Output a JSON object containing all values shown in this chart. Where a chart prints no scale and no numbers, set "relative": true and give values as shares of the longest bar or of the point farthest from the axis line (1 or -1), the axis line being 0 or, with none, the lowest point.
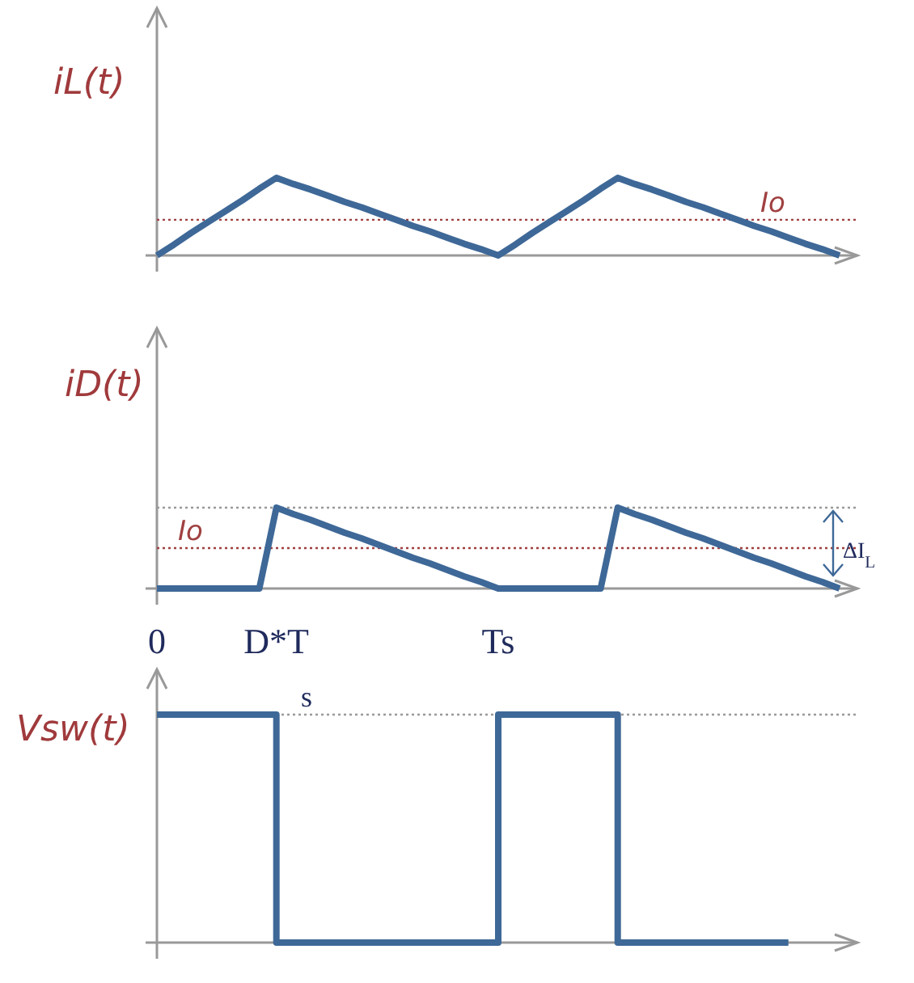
{
  "chart_data": [
    {
      "type": "line",
      "ylabel": "iL(t)",
      "relative": true,
      "tick_labels": false,
      "categories": [
        null,
        null,
        null,
        null,
        null,
        null,
        null,
        null,
        null,
        null,
        null,
        null,
        null,
        null,
        null,
        null,
        null,
        null,
        null,
        null,
        null,
        null,
        null,
        null,
        null,
        null,
        null,
        null,
        null,
        null,
        null,
        null,
        null,
        null,
        null,
        null,
        null,
        null,
        null,
        null,
        null
      ],
      "series": [
        {
          "color": "#3e6897",
          "values": [
            0,
            0.14,
            0.29,
            0.43,
            0.57,
            0.71,
            0.86,
            1,
            0.92,
            0.85,
            0.77,
            0.69,
            0.62,
            0.54,
            0.46,
            0.38,
            0.31,
            0.23,
            0.15,
            0.08,
            0,
            0.14,
            0.29,
            0.43,
            0.57,
            0.71,
            0.86,
            1,
            0.92,
            0.85,
            0.77,
            0.69,
            0.62,
            0.54,
            0.46,
            0.38,
            0.31,
            0.23,
            0.15,
            0.08,
            0
          ]
        }
      ],
      "ref_lines": [
        {
          "axis": "y",
          "value": 0.46,
          "label": "Io",
          "color": "#a04040",
          "line_style": "dotted"
        }
      ]
    },
    {
      "type": "line",
      "ylabel": "iD(t)",
      "relative": true,
      "tick_labels": "x",
      "categories": [
        "0",
        null,
        null,
        null,
        null,
        null,
        null,
        "D*T",
        null,
        null,
        null,
        null,
        null,
        null,
        null,
        null,
        null,
        null,
        null,
        null,
        "Ts",
        null,
        null,
        null,
        null,
        null,
        null,
        null,
        null,
        null,
        null,
        null,
        null,
        null,
        null,
        null,
        null,
        null,
        null,
        null,
        null
      ],
      "series": [
        {
          "color": "#3e6897",
          "values": [
            0,
            0,
            0,
            0,
            0,
            0,
            0,
            1,
            0.92,
            0.85,
            0.77,
            0.69,
            0.62,
            0.54,
            0.46,
            0.38,
            0.31,
            0.23,
            0.15,
            0.08,
            0,
            0,
            0,
            0,
            0,
            0,
            0,
            1,
            0.92,
            0.85,
            0.77,
            0.69,
            0.62,
            0.54,
            0.46,
            0.38,
            0.31,
            0.23,
            0.15,
            0.08,
            0
          ]
        }
      ],
      "ref_lines": [
        {
          "axis": "y",
          "value": 0.5,
          "label": "Io",
          "color": "#a04040",
          "line_style": "dotted"
        },
        {
          "axis": "y",
          "value": 1,
          "color": "#999999",
          "line_style": "dotted"
        }
      ],
      "annotations": [
        "ΔI$_{L}$"
      ]
    },
    {
      "type": "step",
      "ylabel": "Vsw(t)",
      "relative": true,
      "tick_labels": false,
      "categories": [
        null,
        null,
        null,
        null,
        null,
        null,
        null,
        null,
        null,
        null,
        null,
        null,
        null,
        null,
        null,
        null,
        null,
        null,
        null,
        null,
        null,
        null,
        null,
        null,
        null,
        null,
        null,
        null,
        null,
        null,
        null,
        null,
        null,
        null,
        null,
        null,
        null,
        null,
        null,
        null,
        null
      ],
      "series": [
        {
          "color": "#3e6897",
          "values": [
            1,
            1,
            1,
            1,
            1,
            1,
            1,
            0,
            0,
            0,
            0,
            0,
            0,
            0,
            0,
            0,
            0,
            0,
            0,
            0,
            1,
            1,
            1,
            1,
            1,
            1,
            1,
            0,
            0,
            0,
            0,
            0,
            0,
            0,
            0,
            0,
            0,
            0,
            null,
            null,
            null
          ]
        }
      ],
      "ref_lines": [
        {
          "axis": "y",
          "value": 1,
          "color": "#999999",
          "line_style": "dotted"
        }
      ],
      "annotations": [
        "s"
      ]
    }
  ]
}
